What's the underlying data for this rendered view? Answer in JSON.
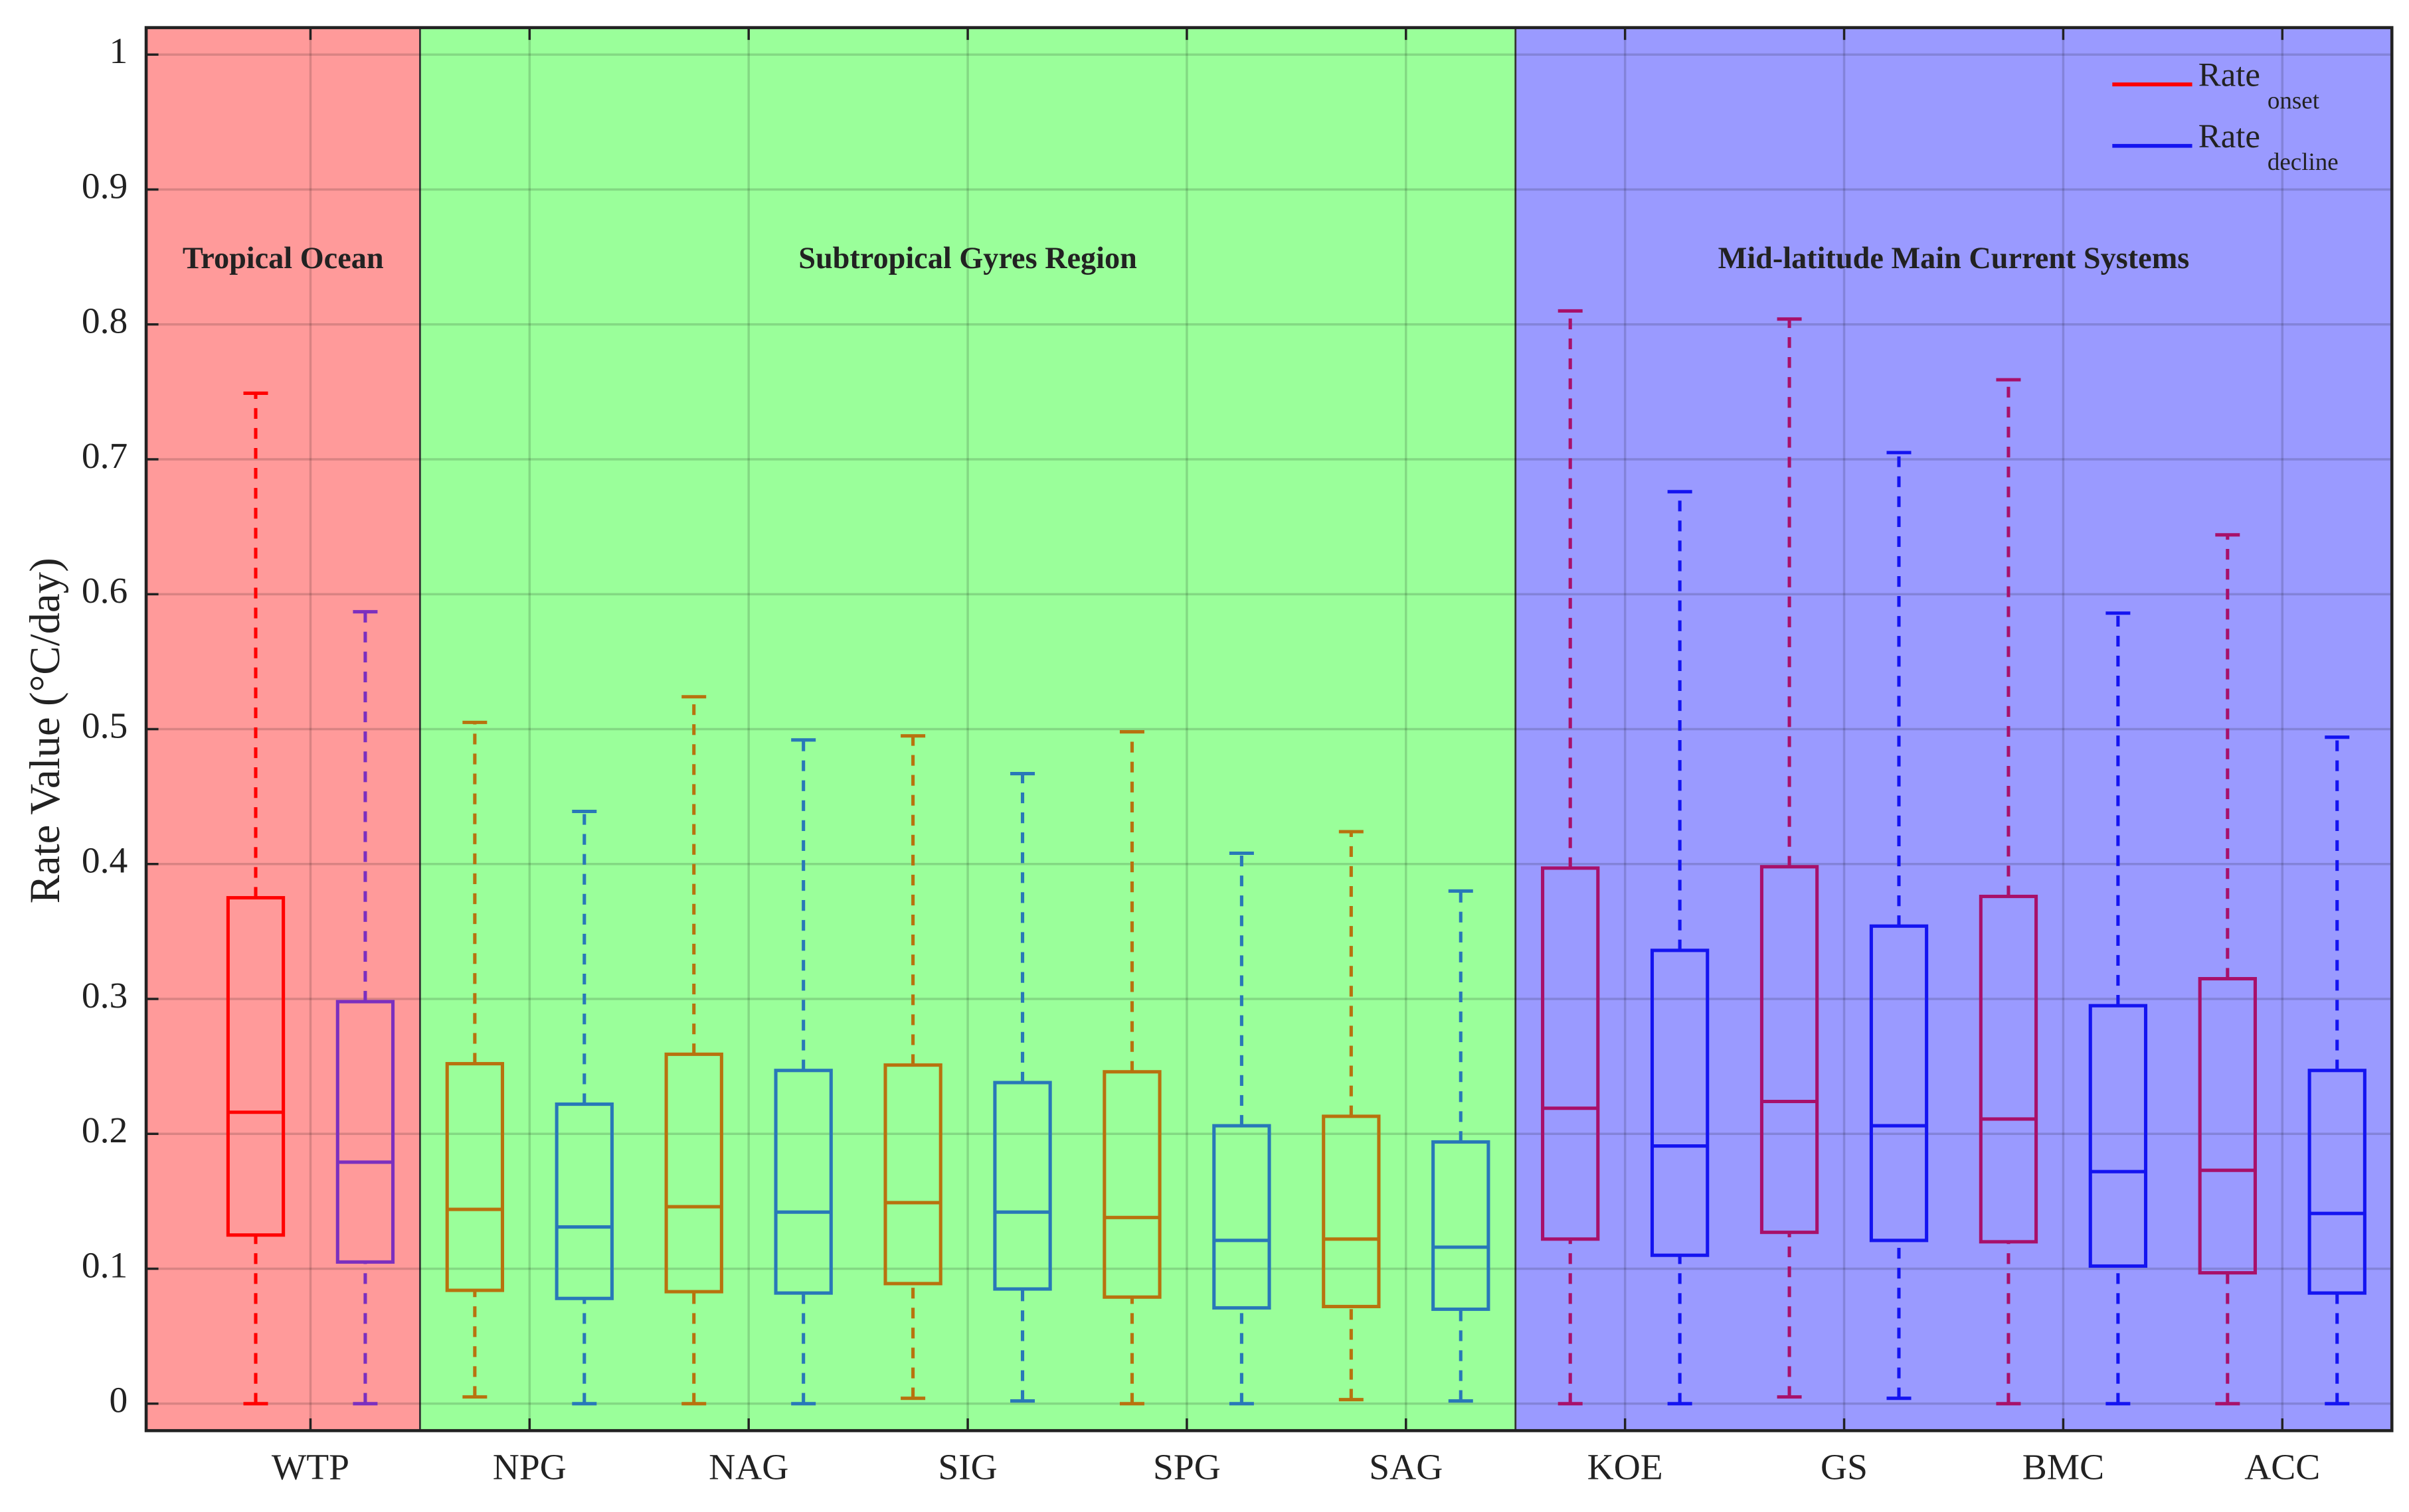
{
  "chart_data": {
    "type": "box",
    "y_label": "Rate Value (°C/day)",
    "categories": [
      "WTP",
      "NPG",
      "NAG",
      "SIG",
      "SPG",
      "SAG",
      "KOE",
      "GS",
      "BMC",
      "ACC"
    ],
    "ylim": [
      -0.02,
      1.02
    ],
    "yticks": [
      0,
      0.1,
      0.2,
      0.3,
      0.4,
      0.5,
      0.6,
      0.7,
      0.8,
      0.9,
      1
    ],
    "grid": true,
    "legend": "upper right",
    "regions": [
      {
        "label": "Tropical Ocean",
        "color": "#ff9a9a",
        "categories": [
          "WTP"
        ]
      },
      {
        "label": "Subtropical Gyres Region",
        "color": "#9aff9a",
        "categories": [
          "NPG",
          "NAG",
          "SIG",
          "SPG",
          "SAG"
        ]
      },
      {
        "label": "Mid-latitude Main Current Systems",
        "color": "#9a9aff",
        "categories": [
          "KOE",
          "GS",
          "BMC",
          "ACC"
        ]
      }
    ],
    "series": [
      {
        "name": "Rate",
        "name_sub": "onset",
        "color": "#ff0000",
        "box_colors": [
          "#ff0000",
          "#b8720e",
          "#b8720e",
          "#b8720e",
          "#b8720e",
          "#b8720e",
          "#a8106a",
          "#a8106a",
          "#a8106a",
          "#a8106a"
        ],
        "values": [
          [
            0,
            0.125,
            0.216,
            0.375,
            0.749
          ],
          [
            0.005,
            0.084,
            0.144,
            0.252,
            0.505
          ],
          [
            0,
            0.083,
            0.146,
            0.259,
            0.524
          ],
          [
            0.004,
            0.089,
            0.149,
            0.251,
            0.495
          ],
          [
            0,
            0.079,
            0.138,
            0.246,
            0.498
          ],
          [
            0.003,
            0.072,
            0.122,
            0.213,
            0.424
          ],
          [
            0,
            0.122,
            0.219,
            0.397,
            0.81
          ],
          [
            0.005,
            0.127,
            0.224,
            0.398,
            0.804
          ],
          [
            0,
            0.12,
            0.211,
            0.376,
            0.759
          ],
          [
            0,
            0.097,
            0.173,
            0.315,
            0.644
          ]
        ]
      },
      {
        "name": "Rate",
        "name_sub": "decline",
        "color": "#1414f0",
        "box_colors": [
          "#7b2fbf",
          "#2878b8",
          "#2878b8",
          "#2878b8",
          "#2878b8",
          "#2878b8",
          "#1414f0",
          "#1414f0",
          "#1414f0",
          "#1414f0"
        ],
        "values": [
          [
            0,
            0.105,
            0.179,
            0.298,
            0.587
          ],
          [
            0,
            0.078,
            0.131,
            0.222,
            0.439
          ],
          [
            0,
            0.082,
            0.142,
            0.247,
            0.492
          ],
          [
            0.002,
            0.085,
            0.142,
            0.238,
            0.467
          ],
          [
            0,
            0.071,
            0.121,
            0.206,
            0.408
          ],
          [
            0.002,
            0.07,
            0.116,
            0.194,
            0.38
          ],
          [
            0,
            0.11,
            0.191,
            0.336,
            0.676
          ],
          [
            0.004,
            0.121,
            0.206,
            0.354,
            0.705
          ],
          [
            0,
            0.102,
            0.172,
            0.295,
            0.586
          ],
          [
            0,
            0.082,
            0.141,
            0.247,
            0.494
          ]
        ]
      }
    ]
  }
}
